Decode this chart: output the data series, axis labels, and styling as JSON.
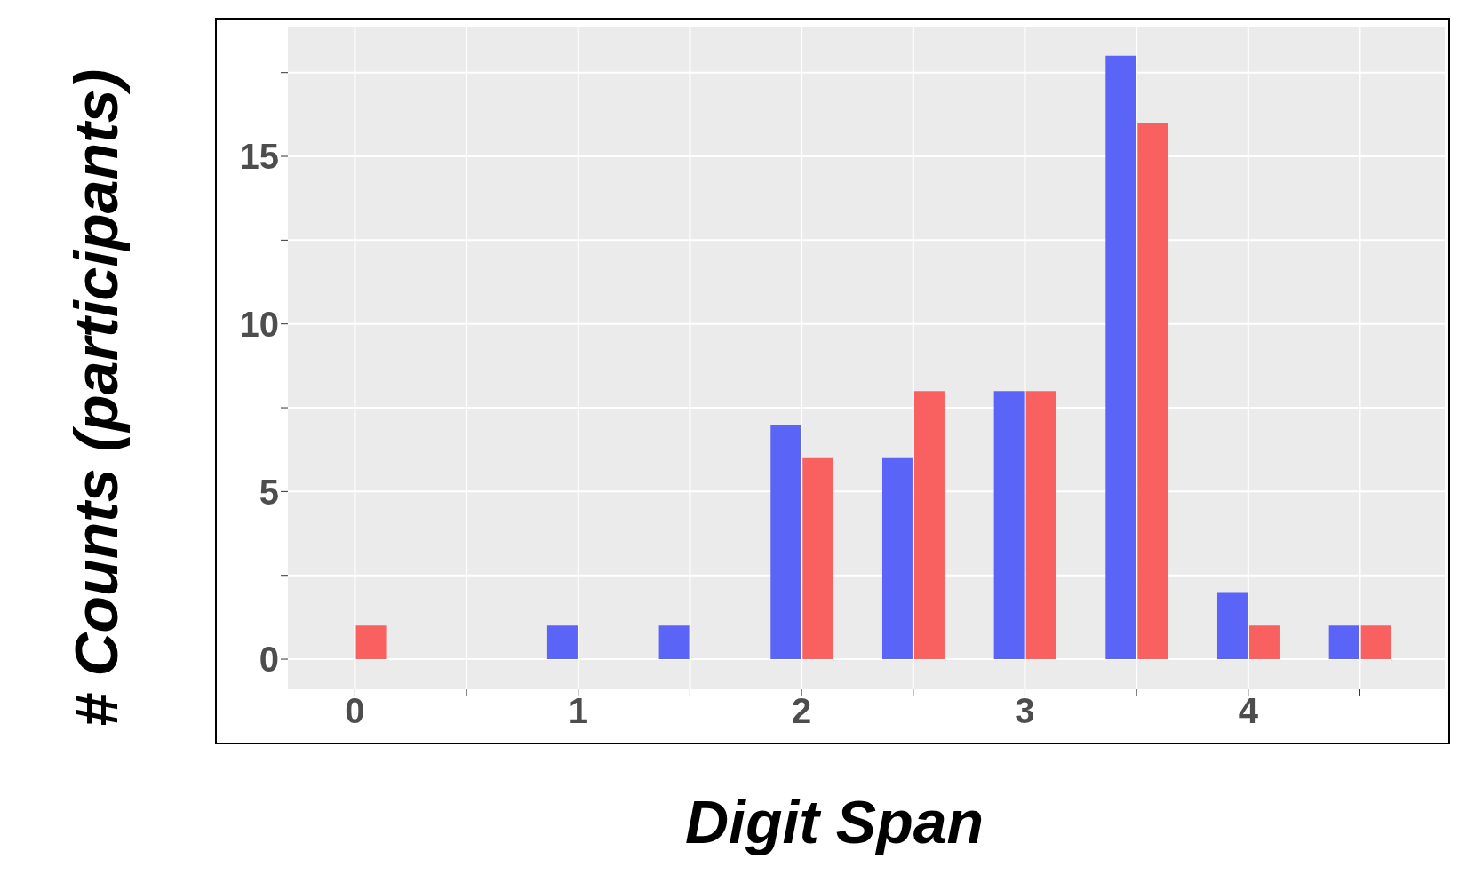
{
  "chart_data": {
    "type": "bar",
    "xlabel": "Digit Span",
    "ylabel": "# Counts (participants)",
    "x": [
      0,
      1,
      1.5,
      2,
      2.5,
      3,
      3.5,
      4,
      4.5
    ],
    "series": [
      {
        "color": "#5a64f7",
        "values": [
          null,
          1,
          1,
          7,
          6,
          8,
          18,
          2,
          1
        ]
      },
      {
        "color": "#f96060",
        "values": [
          1,
          null,
          null,
          6,
          8,
          8,
          16,
          1,
          1
        ]
      }
    ],
    "xlim": [
      -0.3,
      4.88
    ],
    "xticks": [
      0,
      {
        "value": 0.5,
        "label": null
      },
      1,
      {
        "value": 1.5,
        "label": null
      },
      2,
      {
        "value": 2.5,
        "label": null
      },
      3,
      {
        "value": 3.5,
        "label": null
      },
      4,
      {
        "value": 4.5,
        "label": null
      }
    ],
    "ylim": [
      -0.9,
      18.87
    ],
    "yticks": [
      0,
      {
        "value": 2.5,
        "label": null
      },
      5,
      {
        "value": 7.5,
        "label": null
      },
      10,
      {
        "value": 12.5,
        "label": null
      },
      15,
      {
        "value": 17.5,
        "label": null
      }
    ],
    "grid": true,
    "legend": false
  }
}
